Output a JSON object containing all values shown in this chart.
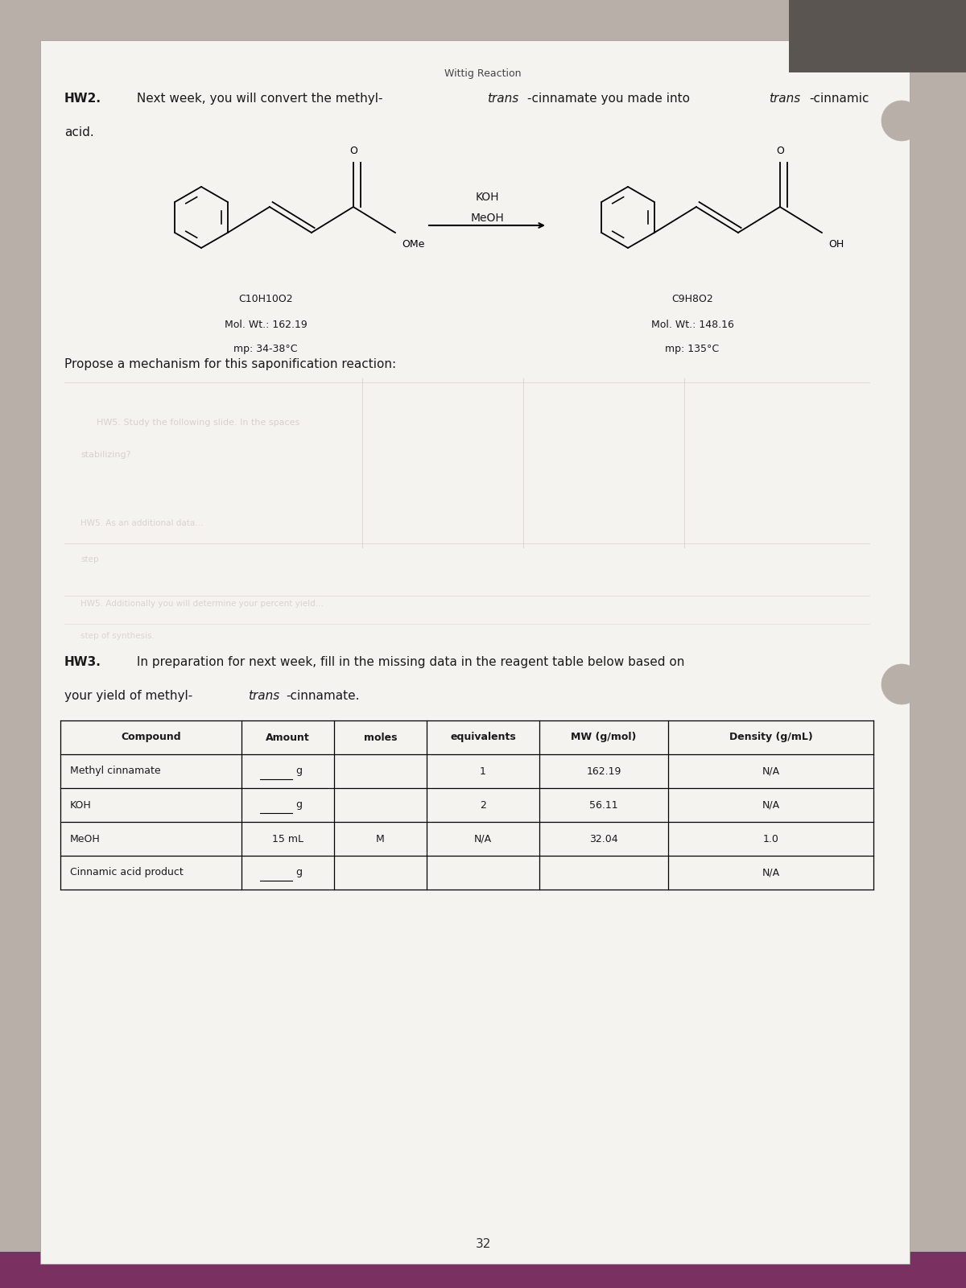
{
  "title": "Wittig Reaction",
  "hw2_text_parts": [
    {
      "text": "HW2.",
      "bold": true,
      "italic": false
    },
    {
      "text": " Next week, you will convert the methyl-",
      "bold": false,
      "italic": false
    },
    {
      "text": "trans",
      "bold": false,
      "italic": true
    },
    {
      "text": "-cinnamate you made into ",
      "bold": false,
      "italic": false
    },
    {
      "text": "trans",
      "bold": false,
      "italic": true
    },
    {
      "text": "-cinnamic",
      "bold": false,
      "italic": false
    }
  ],
  "hw2_line2": "acid.",
  "reagent1": "KOH",
  "reagent2": "MeOH",
  "reactant_formula": "C10H10O2",
  "reactant_mw": "Mol. Wt.: 162.19",
  "reactant_mp": "mp: 34-38°C",
  "product_formula": "C9H8O2",
  "product_mw": "Mol. Wt.: 148.16",
  "product_mp": "mp: 135°C",
  "propose_text": "Propose a mechanism for this saponification reaction:",
  "hw3_line1_parts": [
    {
      "text": "HW3.",
      "bold": true,
      "italic": false
    },
    {
      "text": " In preparation for next week, fill in the missing data in the reagent table below based on",
      "bold": false,
      "italic": false
    }
  ],
  "hw3_line2_parts": [
    {
      "text": "your yield of methyl-",
      "bold": false,
      "italic": false
    },
    {
      "text": "trans",
      "bold": false,
      "italic": true
    },
    {
      "text": "-cinnamate.",
      "bold": false,
      "italic": false
    }
  ],
  "table_headers": [
    "Compound",
    "Amount",
    "moles",
    "equivalents",
    "MW (g/mol)",
    "Density (g/mL)"
  ],
  "table_rows": [
    [
      "Methyl cinnamate",
      "g",
      "",
      "1",
      "162.19",
      "N/A"
    ],
    [
      "KOH",
      "g",
      "",
      "2",
      "56.11",
      "N/A"
    ],
    [
      "MeOH",
      "15 mL",
      "M",
      "N/A",
      "32.04",
      "1.0"
    ],
    [
      "Cinnamic acid product",
      "g",
      "",
      "",
      "",
      "N/A"
    ]
  ],
  "page_number": "32",
  "outer_bg": "#b8b0a8",
  "paper_bg": "#f5f3f0",
  "text_color": "#1a1a1a",
  "faint_color": "#c0bab4"
}
